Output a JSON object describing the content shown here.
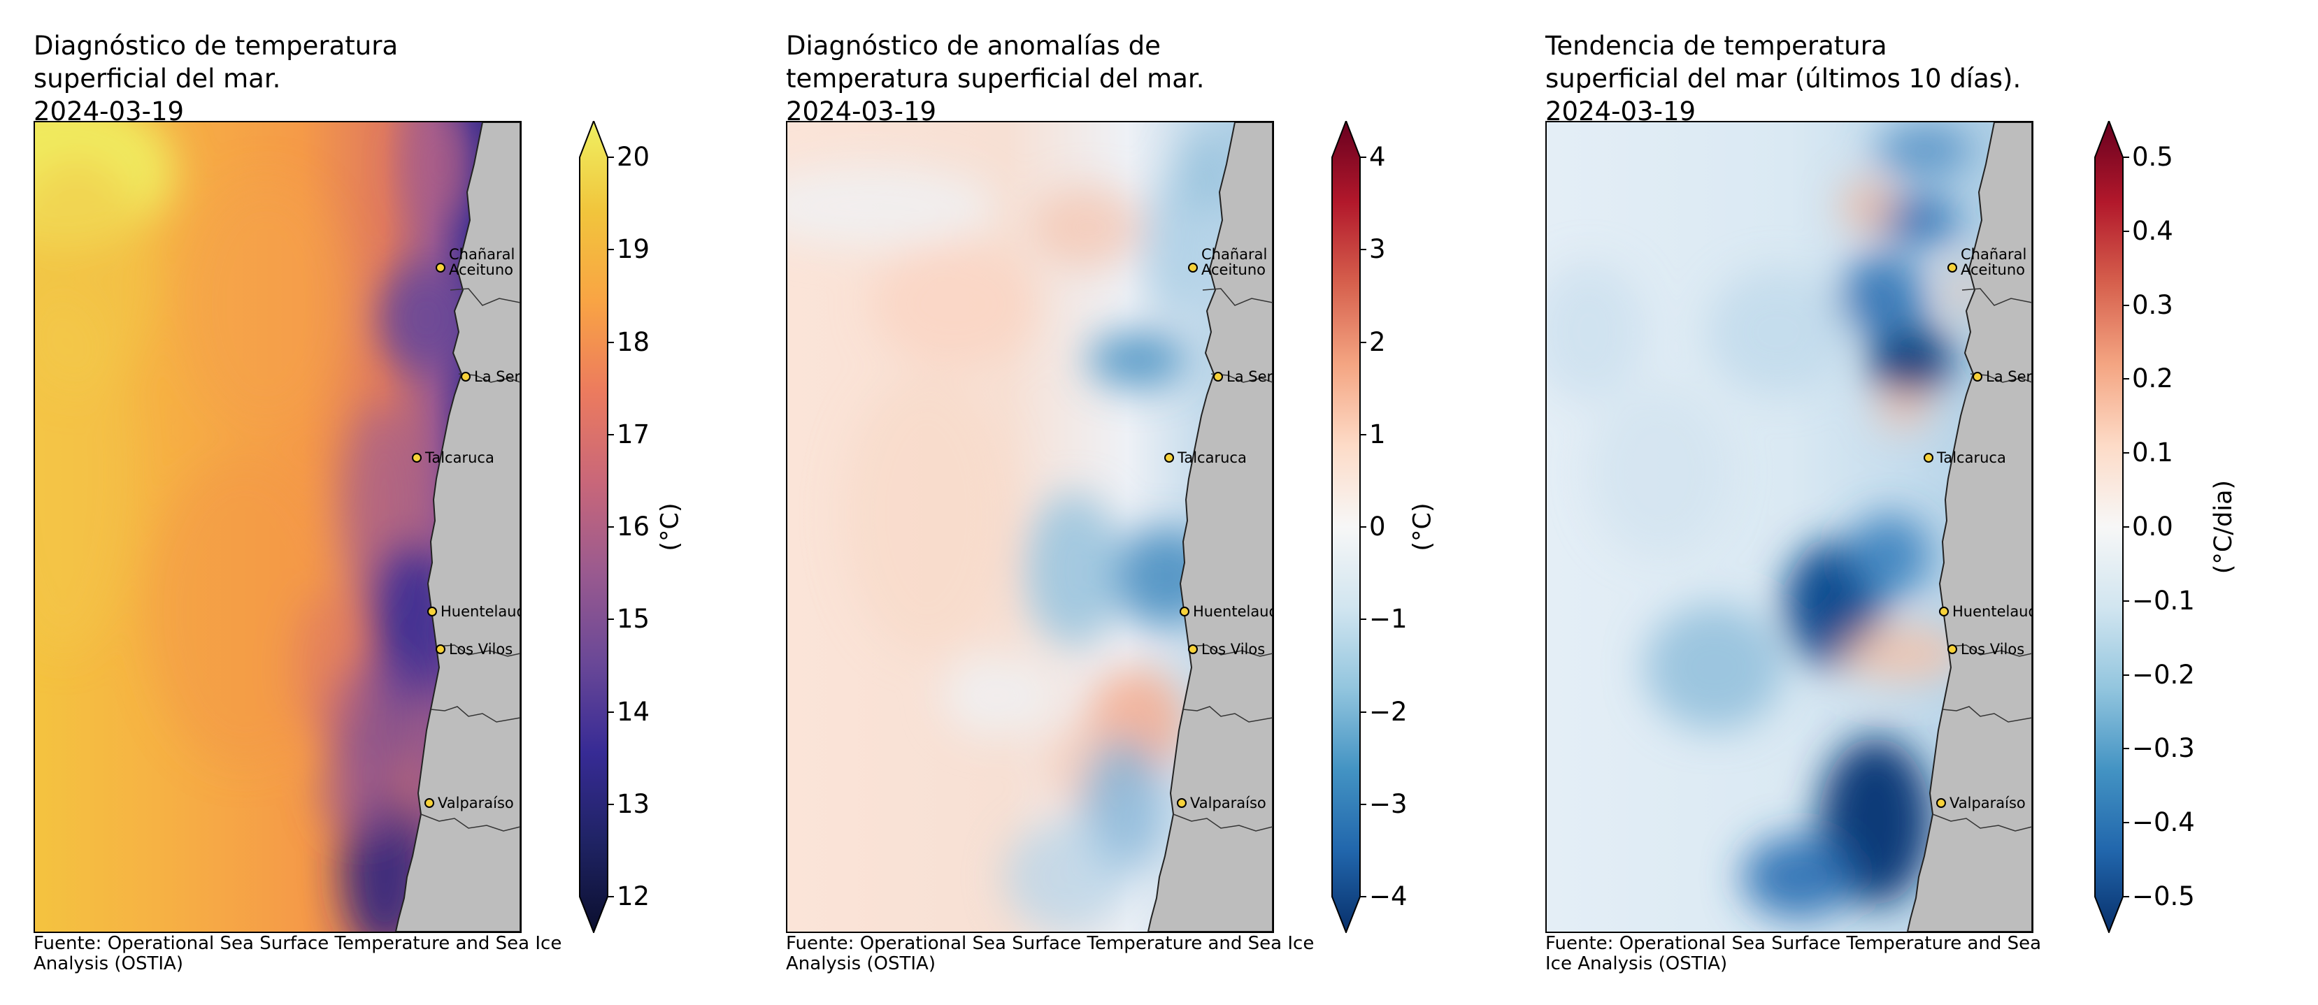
{
  "panels": [
    {
      "id": "sst",
      "title_lines": [
        "Diagnóstico de temperatura",
        "superficial del mar.",
        "2024-03-19"
      ],
      "source_lines": [
        "Fuente: Operational Sea Surface Temperature and Sea Ice",
        "Analysis (OSTIA)"
      ],
      "colorbar": {
        "label": "(°C)",
        "ticks": [
          "12",
          "13",
          "14",
          "15",
          "16",
          "17",
          "18",
          "19",
          "20"
        ],
        "range": [
          12,
          20
        ],
        "colors": [
          "#0b0f2e",
          "#1f2364",
          "#372b95",
          "#6a4897",
          "#9a5a8f",
          "#c96779",
          "#ec7b5e",
          "#f9a444",
          "#f1c53c",
          "#eff062"
        ]
      },
      "cities": [
        "Chañaral de Aceituno",
        "La Serena",
        "Talcaruca",
        "Huentelauquen",
        "Los Vilos",
        "Valparaíso"
      ]
    },
    {
      "id": "anomaly",
      "title_lines": [
        "Diagnóstico de anomalías de",
        "temperatura superficial del mar.",
        "2024-03-19"
      ],
      "source_lines": [
        "Fuente: Operational Sea Surface Temperature and Sea Ice",
        "Analysis (OSTIA)"
      ],
      "colorbar": {
        "label": "(°C)",
        "ticks": [
          "−4",
          "−3",
          "−2",
          "−1",
          "0",
          "1",
          "2",
          "3",
          "4"
        ],
        "range": [
          -4,
          4
        ],
        "colors": [
          "#08306b",
          "#2166ac",
          "#4393c3",
          "#92c5de",
          "#d1e5f0",
          "#f7f7f7",
          "#fddbc7",
          "#f4a582",
          "#d6604d",
          "#b2182b",
          "#67001f"
        ]
      },
      "cities": [
        "Chañaral de Aceituno",
        "La Serena",
        "Talcaruca",
        "Huentelauquen",
        "Los Vilos",
        "Valparaíso"
      ]
    },
    {
      "id": "trend",
      "title_lines": [
        "Tendencia de temperatura",
        "superficial del mar (últimos 10 días).",
        "2024-03-19"
      ],
      "source_lines": [
        "Fuente: Operational Sea Surface Temperature and Sea",
        "Ice Analysis (OSTIA)"
      ],
      "colorbar": {
        "label": "(°C/dia)",
        "ticks": [
          "−0.5",
          "−0.4",
          "−0.3",
          "−0.2",
          "−0.1",
          "0.0",
          "0.1",
          "0.2",
          "0.3",
          "0.4",
          "0.5"
        ],
        "range": [
          -0.5,
          0.5
        ],
        "colors": [
          "#08306b",
          "#2166ac",
          "#4393c3",
          "#92c5de",
          "#d1e5f0",
          "#f7f7f7",
          "#fddbc7",
          "#f4a582",
          "#d6604d",
          "#b2182b",
          "#67001f"
        ]
      },
      "cities": [
        "Chañaral de Aceituno",
        "La Serena",
        "Talcaruca",
        "Huentelauquen",
        "Los Vilos",
        "Valparaíso"
      ]
    }
  ],
  "colors": {
    "land": "#bdbdbd",
    "coastline": "#222222",
    "marker_fill": "#f7d23a",
    "marker_edge": "#000000"
  }
}
